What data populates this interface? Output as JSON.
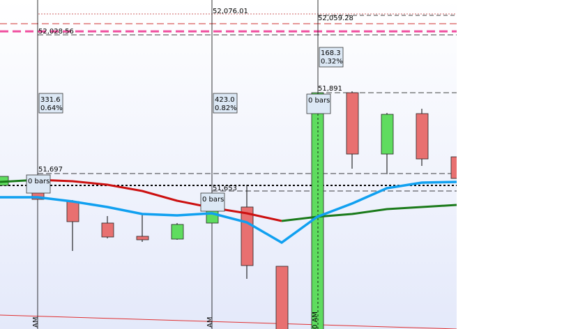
{
  "levels": {
    "top_1": "52,076.01",
    "top_2": "52,059.28",
    "top_3": "52,028.56",
    "mid_1": "51,891",
    "mid_2": "51,697",
    "mid_3": "51,653"
  },
  "annotations": [
    {
      "points": "331.6",
      "percent": "0.64%",
      "bars": "0 bars",
      "time": "AM"
    },
    {
      "points": "423.0",
      "percent": "0.82%",
      "bars": "0 bars",
      "time": "AM"
    },
    {
      "points": "168.3",
      "percent": "0.32%",
      "bars": "0 bars",
      "time": "0 AM"
    }
  ]
}
